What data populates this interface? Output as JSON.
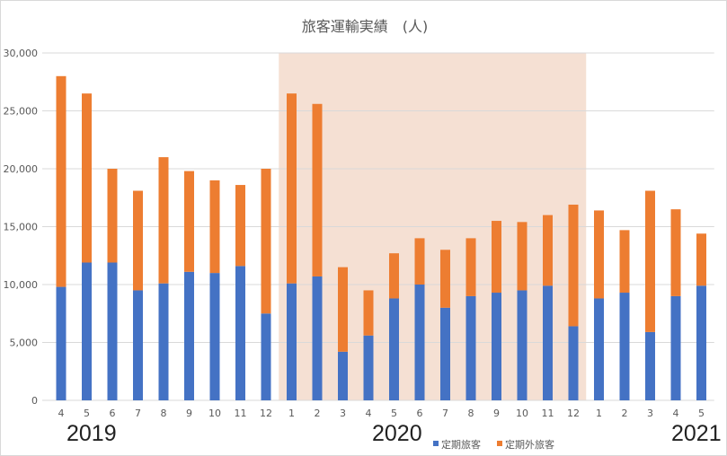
{
  "chart_data": {
    "type": "bar",
    "stacked": true,
    "title": "旅客運輸実績　(人)",
    "xlabel": "",
    "ylabel": "",
    "ylim": [
      0,
      30000
    ],
    "yticks": [
      "0",
      "5,000",
      "10,000",
      "15,000",
      "20,000",
      "25,000",
      "30,000"
    ],
    "ytick_values": [
      0,
      5000,
      10000,
      15000,
      20000,
      25000,
      30000
    ],
    "categories": [
      "4",
      "5",
      "6",
      "7",
      "8",
      "9",
      "10",
      "11",
      "12",
      "1",
      "2",
      "3",
      "4",
      "5",
      "6",
      "7",
      "8",
      "9",
      "10",
      "11",
      "12",
      "1",
      "2",
      "3",
      "4",
      "5"
    ],
    "year_labels": [
      {
        "label": "2019",
        "start_index": 0
      },
      {
        "label": "2020",
        "start_index": 9
      },
      {
        "label": "2021",
        "start_index": 21
      }
    ],
    "highlight_range": {
      "from_index": 9,
      "to_index": 20,
      "color": "#f5e0d3"
    },
    "grid": true,
    "legend": "bottom",
    "series": [
      {
        "name": "定期旅客",
        "color": "#4472c4",
        "values": [
          9800,
          11900,
          11900,
          9500,
          10100,
          11100,
          11000,
          11600,
          7500,
          10100,
          10700,
          4200,
          5600,
          8800,
          10000,
          8000,
          9000,
          9300,
          9500,
          9900,
          6400,
          8800,
          9300,
          5900,
          9000,
          9900
        ]
      },
      {
        "name": "定期外旅客",
        "color": "#ed7d31",
        "values": [
          18200,
          14600,
          8100,
          8600,
          10900,
          8700,
          8000,
          7000,
          12500,
          16400,
          14900,
          7300,
          3900,
          3900,
          4000,
          5000,
          5000,
          6200,
          5900,
          6100,
          10500,
          7600,
          5400,
          12200,
          7500,
          4500
        ]
      }
    ]
  }
}
